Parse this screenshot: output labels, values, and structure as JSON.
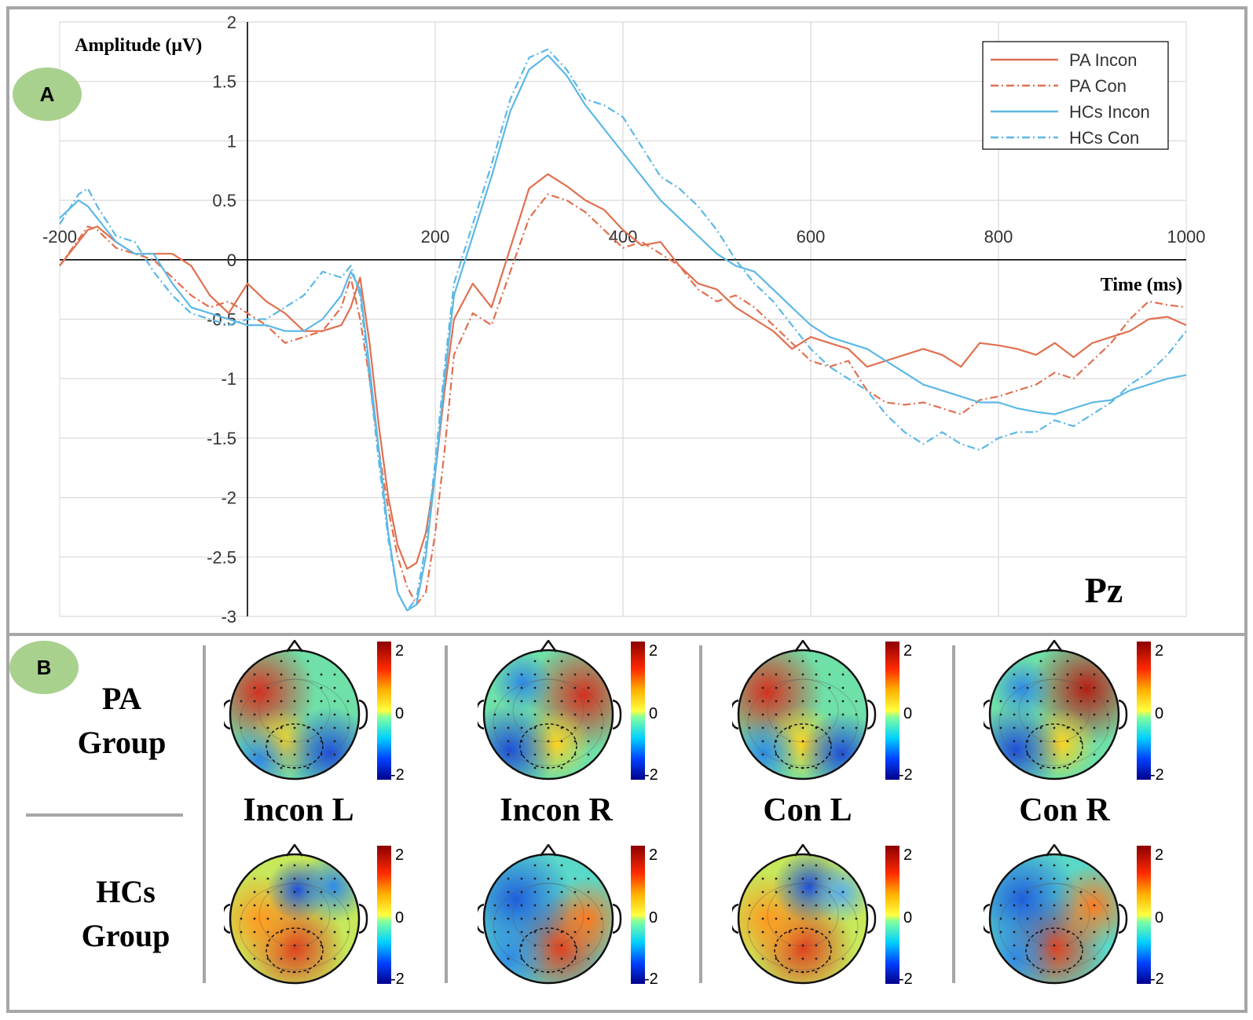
{
  "panel_a": {
    "badge": "A",
    "electrode": "Pz"
  },
  "panel_b": {
    "badge": "B",
    "groups": [
      {
        "line1": "PA",
        "line2": "Group"
      },
      {
        "line1": "HCs",
        "line2": "Group"
      }
    ],
    "conditions": [
      "Incon L",
      "Incon R",
      "Con L",
      "Con R"
    ],
    "colorbar": {
      "max_label": "2",
      "mid_label": "0",
      "min_label": "-2"
    }
  },
  "colors": {
    "pa": "#e07050",
    "hcs": "#5cb8e6",
    "badge": "#a9d18e",
    "frame": "#a6a6a6"
  },
  "chart_data": {
    "type": "line",
    "xlabel": "Time (ms)",
    "ylabel": "Amplitude (μV)",
    "xlim": [
      -200,
      1000
    ],
    "ylim": [
      -3,
      2
    ],
    "x_ticks": [
      -200,
      200,
      400,
      600,
      800,
      1000
    ],
    "x_tick_labels": [
      "-200",
      "200",
      "400",
      "600",
      "800",
      "1000"
    ],
    "y_ticks": [
      2,
      1.5,
      1,
      0.5,
      0,
      -0.5,
      -1,
      -1.5,
      -2,
      -2.5,
      -3
    ],
    "y_tick_labels": [
      "2",
      "1.5",
      "1",
      "0.5",
      "0",
      "-0.5",
      "-1",
      "-1.5",
      "-2",
      "-2.5",
      "-3"
    ],
    "legend": "top-right",
    "series": [
      {
        "name": "PA Incon",
        "color": "#e07050",
        "dash": "solid",
        "x": [
          -200,
          -170,
          -160,
          -140,
          -120,
          -100,
          -80,
          -60,
          -40,
          -20,
          0,
          20,
          40,
          60,
          80,
          100,
          110,
          120,
          130,
          140,
          150,
          160,
          170,
          180,
          190,
          200,
          210,
          220,
          240,
          260,
          280,
          300,
          320,
          340,
          360,
          380,
          400,
          420,
          440,
          460,
          480,
          500,
          520,
          540,
          560,
          580,
          600,
          620,
          640,
          660,
          680,
          700,
          720,
          740,
          760,
          780,
          800,
          820,
          840,
          860,
          880,
          900,
          920,
          940,
          960,
          980,
          1000
        ],
        "y": [
          -0.05,
          0.25,
          0.28,
          0.15,
          0.05,
          0.05,
          0.05,
          -0.05,
          -0.3,
          -0.45,
          -0.2,
          -0.35,
          -0.45,
          -0.6,
          -0.6,
          -0.55,
          -0.4,
          -0.15,
          -0.7,
          -1.4,
          -2.0,
          -2.4,
          -2.6,
          -2.55,
          -2.3,
          -1.8,
          -1.1,
          -0.5,
          -0.2,
          -0.4,
          0.1,
          0.6,
          0.72,
          0.62,
          0.5,
          0.42,
          0.25,
          0.12,
          0.15,
          -0.05,
          -0.2,
          -0.25,
          -0.4,
          -0.5,
          -0.6,
          -0.75,
          -0.65,
          -0.7,
          -0.75,
          -0.9,
          -0.85,
          -0.8,
          -0.75,
          -0.8,
          -0.9,
          -0.7,
          -0.72,
          -0.75,
          -0.8,
          -0.7,
          -0.82,
          -0.7,
          -0.65,
          -0.6,
          -0.5,
          -0.48,
          -0.55
        ]
      },
      {
        "name": "PA Con",
        "color": "#e07050",
        "dash": "dashdot",
        "x": [
          -200,
          -170,
          -160,
          -140,
          -120,
          -100,
          -80,
          -60,
          -40,
          -20,
          0,
          20,
          40,
          60,
          80,
          100,
          110,
          120,
          130,
          140,
          150,
          160,
          170,
          180,
          190,
          200,
          210,
          220,
          240,
          260,
          280,
          300,
          320,
          340,
          360,
          380,
          400,
          420,
          440,
          460,
          480,
          500,
          520,
          540,
          560,
          580,
          600,
          620,
          640,
          660,
          680,
          700,
          720,
          740,
          760,
          780,
          800,
          820,
          840,
          860,
          880,
          900,
          920,
          940,
          960,
          980,
          1000
        ],
        "y": [
          -0.05,
          0.28,
          0.25,
          0.1,
          0.05,
          0.0,
          -0.15,
          -0.3,
          -0.4,
          -0.35,
          -0.45,
          -0.55,
          -0.7,
          -0.65,
          -0.6,
          -0.4,
          -0.15,
          -0.5,
          -1.0,
          -1.6,
          -2.1,
          -2.5,
          -2.75,
          -2.9,
          -2.8,
          -2.3,
          -1.6,
          -0.8,
          -0.45,
          -0.55,
          -0.1,
          0.35,
          0.55,
          0.5,
          0.4,
          0.25,
          0.1,
          0.15,
          0.05,
          -0.05,
          -0.25,
          -0.35,
          -0.3,
          -0.4,
          -0.55,
          -0.7,
          -0.85,
          -0.9,
          -0.85,
          -1.1,
          -1.2,
          -1.22,
          -1.2,
          -1.25,
          -1.3,
          -1.18,
          -1.15,
          -1.1,
          -1.05,
          -0.95,
          -1.0,
          -0.85,
          -0.7,
          -0.5,
          -0.35,
          -0.38,
          -0.4
        ]
      },
      {
        "name": "HCs Incon",
        "color": "#5cb8e6",
        "dash": "solid",
        "x": [
          -200,
          -180,
          -170,
          -160,
          -140,
          -120,
          -100,
          -80,
          -60,
          -40,
          -20,
          0,
          20,
          40,
          60,
          80,
          100,
          110,
          120,
          130,
          140,
          150,
          160,
          170,
          180,
          190,
          200,
          210,
          220,
          240,
          260,
          280,
          300,
          320,
          340,
          360,
          380,
          400,
          420,
          440,
          460,
          480,
          500,
          520,
          540,
          560,
          580,
          600,
          620,
          640,
          660,
          680,
          700,
          720,
          740,
          760,
          780,
          800,
          820,
          840,
          860,
          880,
          900,
          920,
          940,
          960,
          980,
          1000
        ],
        "y": [
          0.35,
          0.5,
          0.45,
          0.35,
          0.15,
          0.05,
          0.05,
          -0.2,
          -0.4,
          -0.45,
          -0.5,
          -0.55,
          -0.55,
          -0.6,
          -0.6,
          -0.5,
          -0.3,
          -0.1,
          -0.25,
          -0.9,
          -1.6,
          -2.3,
          -2.8,
          -2.95,
          -2.9,
          -2.5,
          -1.8,
          -1.0,
          -0.3,
          0.2,
          0.7,
          1.25,
          1.6,
          1.72,
          1.55,
          1.3,
          1.1,
          0.9,
          0.7,
          0.5,
          0.35,
          0.2,
          0.05,
          -0.05,
          -0.1,
          -0.25,
          -0.4,
          -0.55,
          -0.65,
          -0.7,
          -0.75,
          -0.85,
          -0.95,
          -1.05,
          -1.1,
          -1.15,
          -1.2,
          -1.2,
          -1.25,
          -1.28,
          -1.3,
          -1.25,
          -1.2,
          -1.18,
          -1.1,
          -1.05,
          -1.0,
          -0.97
        ]
      },
      {
        "name": "HCs Con",
        "color": "#5cb8e6",
        "dash": "dashdot",
        "x": [
          -200,
          -180,
          -170,
          -160,
          -140,
          -120,
          -100,
          -80,
          -60,
          -40,
          -20,
          0,
          20,
          40,
          60,
          80,
          100,
          110,
          120,
          130,
          140,
          150,
          160,
          170,
          180,
          190,
          200,
          210,
          220,
          240,
          260,
          280,
          300,
          320,
          340,
          360,
          380,
          400,
          420,
          440,
          460,
          480,
          500,
          520,
          540,
          560,
          580,
          600,
          620,
          640,
          660,
          680,
          700,
          720,
          740,
          760,
          780,
          800,
          820,
          840,
          860,
          880,
          900,
          920,
          940,
          960,
          980,
          1000
        ],
        "y": [
          0.3,
          0.55,
          0.6,
          0.45,
          0.2,
          0.15,
          -0.1,
          -0.3,
          -0.45,
          -0.5,
          -0.55,
          -0.5,
          -0.5,
          -0.4,
          -0.3,
          -0.1,
          -0.15,
          -0.05,
          -0.3,
          -1.0,
          -1.7,
          -2.35,
          -2.8,
          -2.95,
          -2.85,
          -2.4,
          -1.7,
          -0.9,
          -0.2,
          0.3,
          0.8,
          1.35,
          1.7,
          1.77,
          1.6,
          1.35,
          1.3,
          1.2,
          0.95,
          0.7,
          0.6,
          0.45,
          0.25,
          0.0,
          -0.2,
          -0.35,
          -0.55,
          -0.75,
          -0.9,
          -1.0,
          -1.1,
          -1.3,
          -1.45,
          -1.55,
          -1.45,
          -1.55,
          -1.6,
          -1.5,
          -1.45,
          -1.45,
          -1.35,
          -1.4,
          -1.3,
          -1.2,
          -1.05,
          -0.95,
          -0.8,
          -0.6
        ]
      }
    ]
  }
}
